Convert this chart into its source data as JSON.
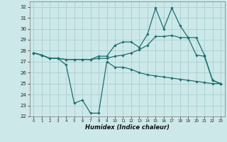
{
  "xlabel": "Humidex (Indice chaleur)",
  "bg_color": "#cde8e8",
  "grid_color": "#aacfcf",
  "line_color": "#1a7070",
  "ylim": [
    22,
    32.5
  ],
  "xlim": [
    -0.5,
    23.5
  ],
  "yticks": [
    22,
    23,
    24,
    25,
    26,
    27,
    28,
    29,
    30,
    31,
    32
  ],
  "xticks": [
    0,
    1,
    2,
    3,
    4,
    5,
    6,
    7,
    8,
    9,
    10,
    11,
    12,
    13,
    14,
    15,
    16,
    17,
    18,
    19,
    20,
    21,
    22,
    23
  ],
  "line1_x": [
    0,
    1,
    2,
    3,
    4,
    5,
    6,
    7,
    8,
    9,
    10,
    11,
    12,
    13,
    14,
    15,
    16,
    17,
    18,
    19,
    20,
    21,
    22,
    23
  ],
  "line1_y": [
    27.8,
    27.6,
    27.3,
    27.3,
    26.7,
    23.2,
    23.5,
    22.3,
    22.3,
    27.0,
    26.5,
    26.5,
    26.3,
    26.0,
    25.8,
    25.7,
    25.6,
    25.5,
    25.4,
    25.3,
    25.2,
    25.1,
    25.0,
    25.0
  ],
  "line2_x": [
    0,
    1,
    2,
    3,
    4,
    5,
    6,
    7,
    8,
    9,
    10,
    11,
    12,
    13,
    14,
    15,
    16,
    17,
    18,
    19,
    20,
    21,
    22,
    23
  ],
  "line2_y": [
    27.8,
    27.6,
    27.3,
    27.3,
    27.2,
    27.2,
    27.2,
    27.2,
    27.3,
    27.3,
    27.5,
    27.6,
    27.8,
    28.1,
    28.5,
    29.3,
    29.3,
    29.4,
    29.2,
    29.2,
    27.6,
    27.5,
    25.3,
    25.0
  ],
  "line3_x": [
    0,
    1,
    2,
    3,
    4,
    5,
    6,
    7,
    8,
    9,
    10,
    11,
    12,
    13,
    14,
    15,
    16,
    17,
    18,
    19,
    20,
    21,
    22,
    23
  ],
  "line3_y": [
    27.8,
    27.6,
    27.3,
    27.3,
    27.2,
    27.2,
    27.2,
    27.2,
    27.5,
    27.5,
    28.5,
    28.8,
    28.8,
    28.3,
    29.5,
    31.9,
    30.0,
    31.9,
    30.3,
    29.2,
    29.2,
    27.6,
    25.3,
    25.0
  ]
}
